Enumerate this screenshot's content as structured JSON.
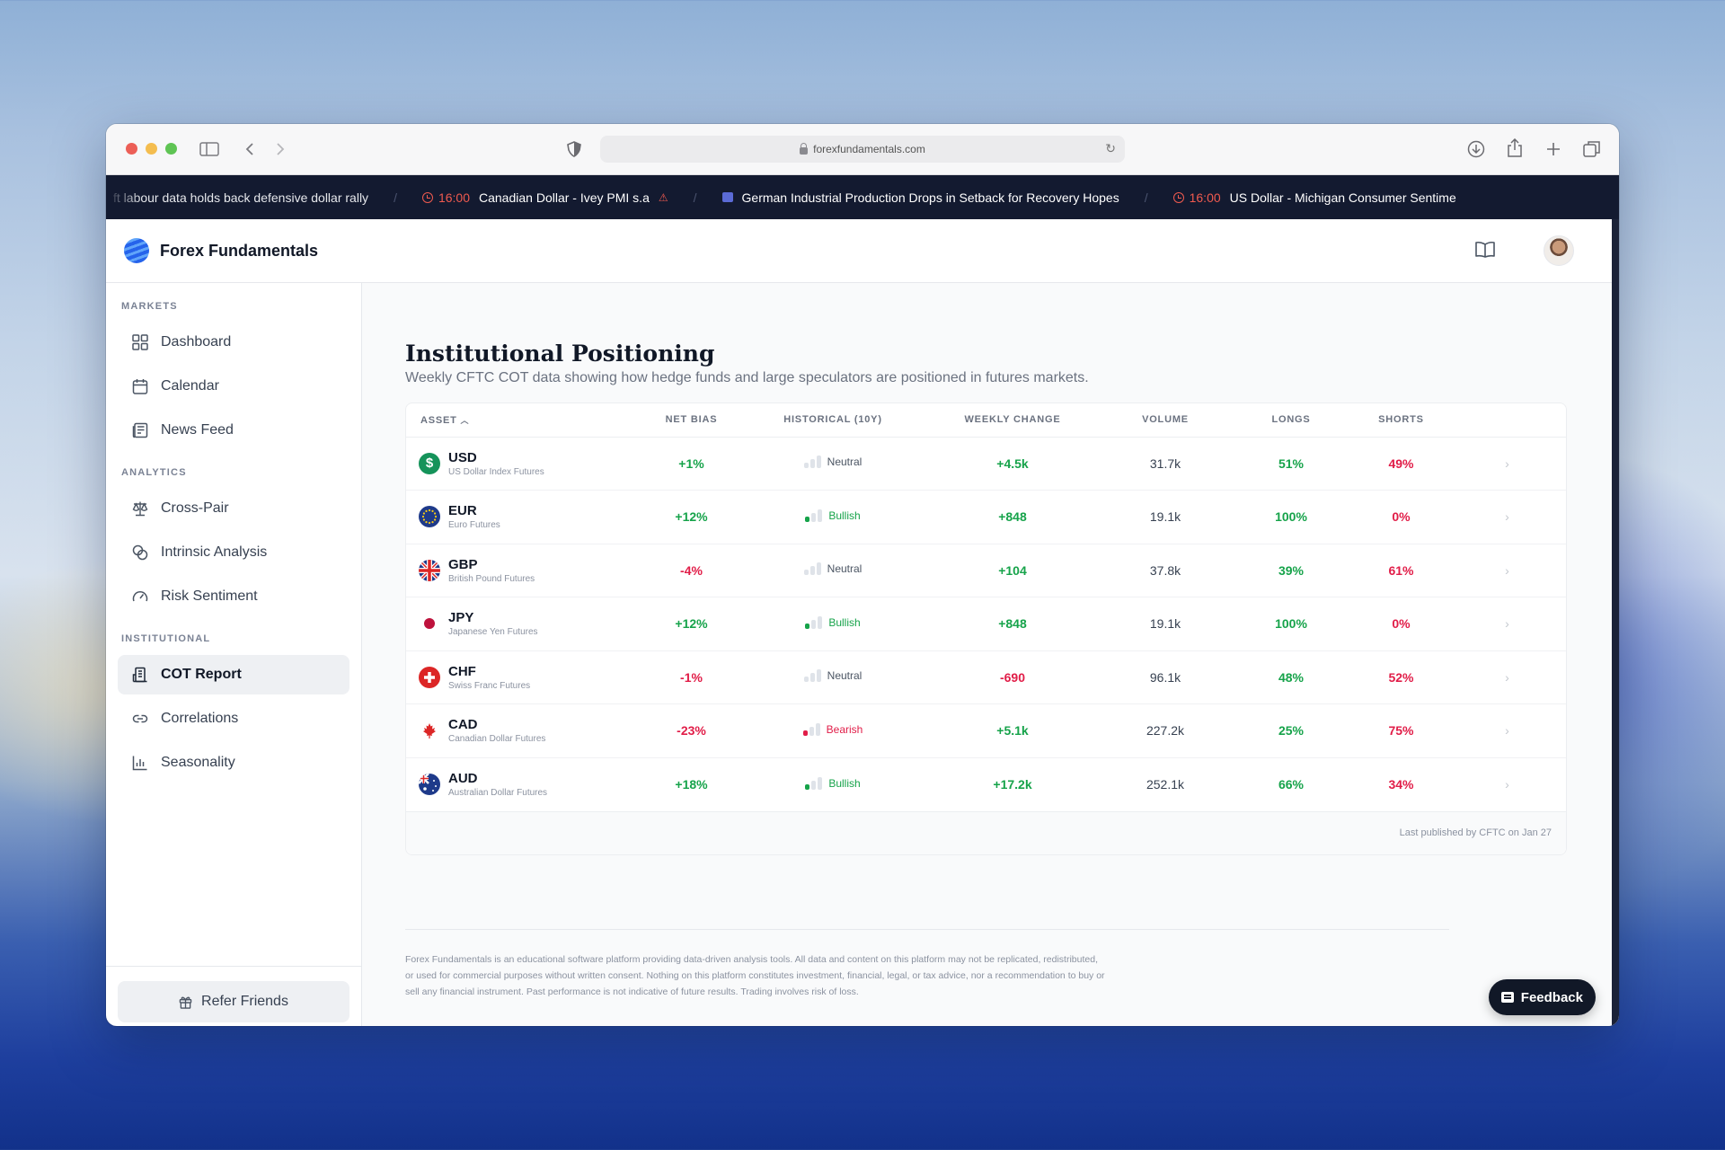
{
  "browser": {
    "url": "forexfundamentals.com"
  },
  "ticker": [
    {
      "type": "text",
      "text": "ft labour data holds back defensive dollar rally"
    },
    {
      "type": "event",
      "time": "16:00",
      "text": "Canadian Dollar - Ivey PMI s.a",
      "warn": "⚠"
    },
    {
      "type": "news",
      "text": "German Industrial Production Drops in Setback for Recovery Hopes"
    },
    {
      "type": "event",
      "time": "16:00",
      "text": "US Dollar - Michigan Consumer Sentime"
    }
  ],
  "app": {
    "brand": "Forex Fundamentals"
  },
  "sidebar": {
    "sections": [
      {
        "title": "MARKETS",
        "items": [
          {
            "label": "Dashboard",
            "icon": "grid-icon"
          },
          {
            "label": "Calendar",
            "icon": "calendar-icon"
          },
          {
            "label": "News Feed",
            "icon": "newspaper-icon"
          }
        ]
      },
      {
        "title": "ANALYTICS",
        "items": [
          {
            "label": "Cross-Pair",
            "icon": "scale-icon"
          },
          {
            "label": "Intrinsic Analysis",
            "icon": "coins-icon"
          },
          {
            "label": "Risk Sentiment",
            "icon": "gauge-icon"
          }
        ]
      },
      {
        "title": "INSTITUTIONAL",
        "items": [
          {
            "label": "COT Report",
            "icon": "building-icon",
            "active": true
          },
          {
            "label": "Correlations",
            "icon": "link-icon"
          },
          {
            "label": "Seasonality",
            "icon": "bar-chart-icon"
          }
        ]
      }
    ],
    "refer": "Refer Friends"
  },
  "page": {
    "title": "Institutional Positioning",
    "subtitle": "Weekly CFTC COT data showing how hedge funds and large speculators are positioned in futures markets."
  },
  "table": {
    "headers": {
      "asset": "ASSET",
      "net_bias": "NET BIAS",
      "historical": "HISTORICAL (10Y)",
      "weekly_change": "WEEKLY CHANGE",
      "volume": "VOLUME",
      "longs": "LONGS",
      "shorts": "SHORTS"
    },
    "sort_indicator": "^",
    "rows": [
      {
        "code": "USD",
        "name": "US Dollar Index Futures",
        "net_bias": "+1%",
        "bias_dir": "pos",
        "historical": "Neutral",
        "hist_class": "neut",
        "weekly_change": "+4.5k",
        "wc_dir": "pos",
        "volume": "31.7k",
        "longs": "51%",
        "shorts": "49%"
      },
      {
        "code": "EUR",
        "name": "Euro Futures",
        "net_bias": "+12%",
        "bias_dir": "pos",
        "historical": "Bullish",
        "hist_class": "bull",
        "weekly_change": "+848",
        "wc_dir": "pos",
        "volume": "19.1k",
        "longs": "100%",
        "shorts": "0%"
      },
      {
        "code": "GBP",
        "name": "British Pound Futures",
        "net_bias": "-4%",
        "bias_dir": "neg",
        "historical": "Neutral",
        "hist_class": "neut",
        "weekly_change": "+104",
        "wc_dir": "pos",
        "volume": "37.8k",
        "longs": "39%",
        "shorts": "61%"
      },
      {
        "code": "JPY",
        "name": "Japanese Yen Futures",
        "net_bias": "+12%",
        "bias_dir": "pos",
        "historical": "Bullish",
        "hist_class": "bull",
        "weekly_change": "+848",
        "wc_dir": "pos",
        "volume": "19.1k",
        "longs": "100%",
        "shorts": "0%"
      },
      {
        "code": "CHF",
        "name": "Swiss Franc Futures",
        "net_bias": "-1%",
        "bias_dir": "neg",
        "historical": "Neutral",
        "hist_class": "neut",
        "weekly_change": "-690",
        "wc_dir": "neg",
        "volume": "96.1k",
        "longs": "48%",
        "shorts": "52%"
      },
      {
        "code": "CAD",
        "name": "Canadian Dollar Futures",
        "net_bias": "-23%",
        "bias_dir": "neg",
        "historical": "Bearish",
        "hist_class": "bear",
        "weekly_change": "+5.1k",
        "wc_dir": "pos",
        "volume": "227.2k",
        "longs": "25%",
        "shorts": "75%"
      },
      {
        "code": "AUD",
        "name": "Australian Dollar Futures",
        "net_bias": "+18%",
        "bias_dir": "pos",
        "historical": "Bullish",
        "hist_class": "bull",
        "weekly_change": "+17.2k",
        "wc_dir": "pos",
        "volume": "252.1k",
        "longs": "66%",
        "shorts": "34%"
      }
    ],
    "footer": "Last published by CFTC on Jan 27"
  },
  "footer": {
    "disclaimer": "Forex Fundamentals is an educational software platform providing data-driven analysis tools. All data and content on this platform may not be replicated, redistributed, or used for commercial purposes without written consent. Nothing on this platform constitutes investment, financial, legal, or tax advice, nor a recommendation to buy or sell any financial instrument. Past performance is not indicative of future results. Trading involves risk of loss."
  },
  "feedback": "Feedback",
  "colors": {
    "positive": "#16a34a",
    "negative": "#e11d48",
    "ticker_bg": "#131a30",
    "time_accent": "#f05a4f"
  }
}
